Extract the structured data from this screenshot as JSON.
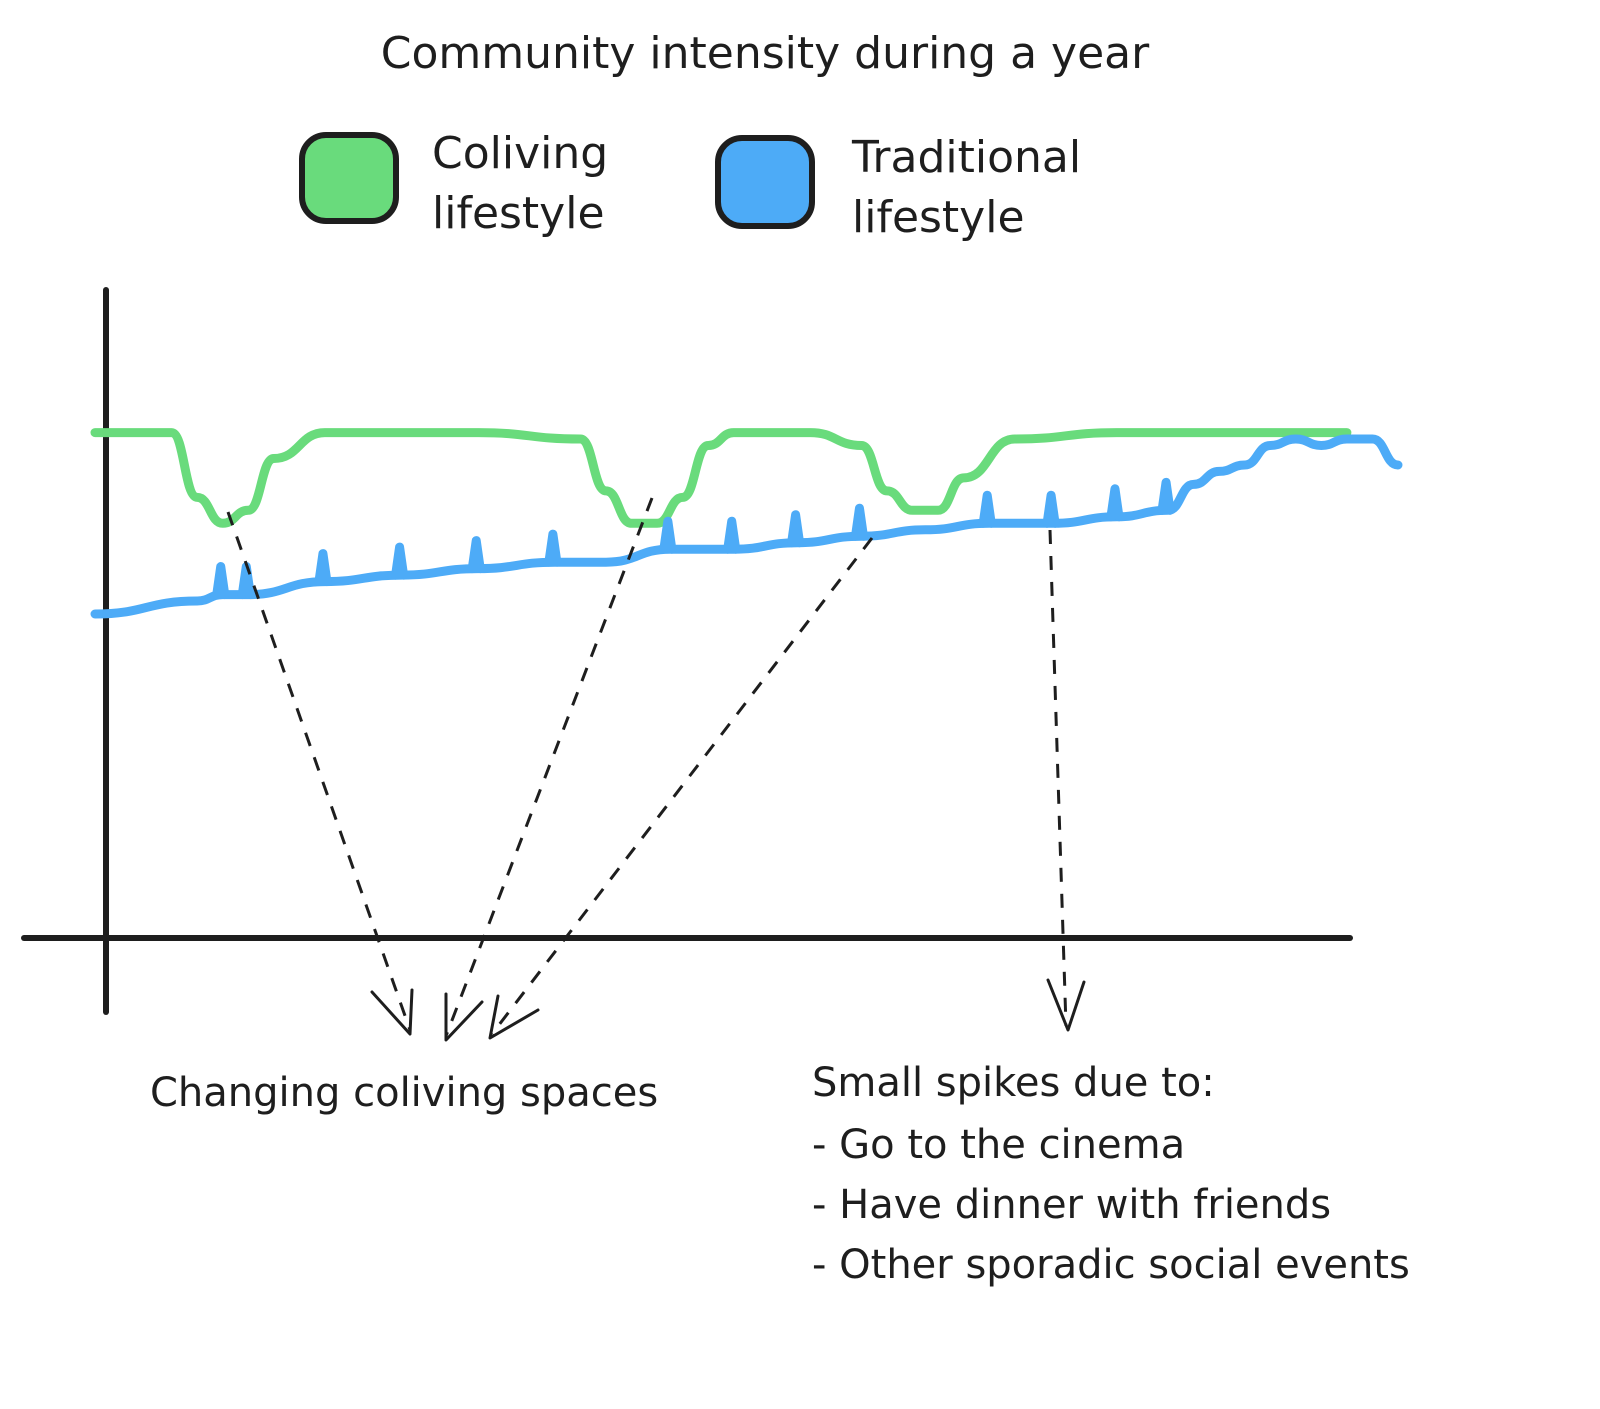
{
  "chart_data": {
    "type": "line",
    "title": "Community intensity during a year",
    "xlabel": "",
    "ylabel": "",
    "x_range": [
      0,
      100
    ],
    "y_range": [
      0,
      100
    ],
    "grid": false,
    "legend_placement": "top",
    "series": [
      {
        "name": "Coliving lifestyle",
        "color": "#69db7c",
        "x": [
          0,
          6,
          8,
          10,
          12,
          14,
          18,
          30,
          38,
          40,
          42,
          44,
          46,
          48,
          50,
          56,
          60,
          62,
          64,
          66,
          68,
          72,
          80,
          90,
          98
        ],
        "y": [
          78,
          78,
          68,
          64,
          66,
          74,
          78,
          78,
          77,
          69,
          64,
          64,
          68,
          76,
          78,
          78,
          76,
          69,
          66,
          66,
          71,
          77,
          78,
          78,
          78
        ]
      },
      {
        "name": "Traditional lifestyle",
        "color": "#4dabf7",
        "x": [
          0,
          8,
          10,
          12,
          18,
          24,
          30,
          36,
          40,
          45,
          50,
          55,
          60,
          65,
          70,
          75,
          80,
          84,
          86,
          88,
          90,
          92,
          94,
          96,
          98,
          100,
          102
        ],
        "y": [
          50,
          52,
          53,
          53,
          55,
          56,
          57,
          58,
          58,
          60,
          60,
          61,
          62,
          63,
          64,
          64,
          65,
          66,
          70,
          72,
          73,
          76,
          77,
          76,
          77,
          77,
          73
        ]
      }
    ],
    "annotations": [
      {
        "text": "Changing coliving spaces"
      },
      {
        "text": "Small spikes due to:"
      },
      {
        "text": "- Go to the cinema"
      },
      {
        "text": "- Have dinner with friends"
      },
      {
        "text": "- Other sporadic social events"
      }
    ]
  },
  "legend": {
    "coliving_line1": "Coliving",
    "coliving_line2": "lifestyle",
    "traditional_line1": "Traditional",
    "traditional_line2": "lifestyle"
  }
}
